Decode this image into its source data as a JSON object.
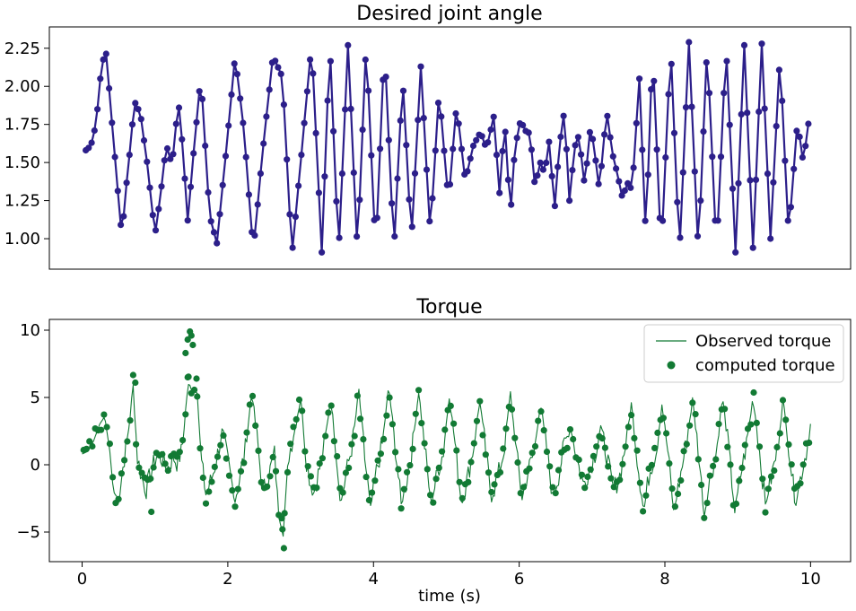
{
  "colors": {
    "angle_series": "#2c1f8a",
    "torque_series": "#127a34",
    "axis": "#000000",
    "background": "#ffffff",
    "legend_border": "#cccccc"
  },
  "chart_data": [
    {
      "type": "line",
      "title": "Desired joint angle",
      "xlabel": "",
      "ylabel": "",
      "xlim": [
        -0.45,
        10.55
      ],
      "ylim": [
        0.8,
        2.39
      ],
      "x_ticks_shown": false,
      "y_ticks": [
        "1.00",
        "1.25",
        "1.50",
        "1.75",
        "2.00",
        "2.25"
      ],
      "grid": false,
      "legend": null,
      "series": [
        {
          "style": "line-with-markers",
          "color": "#2c1f8a",
          "keyframes": {
            "x": [
              0.05,
              0.1,
              0.15,
              0.2,
              0.25,
              0.32,
              0.38,
              0.46,
              0.55,
              0.58,
              0.65,
              0.72,
              0.8,
              0.9,
              1.0,
              1.08,
              1.15,
              1.2,
              1.23,
              1.27,
              1.33,
              1.38,
              1.45,
              1.53,
              1.63,
              1.75,
              1.85,
              1.98,
              2.1,
              2.22,
              2.35,
              2.48,
              2.62,
              2.75,
              2.88,
              3.01,
              3.15,
              3.29,
              3.4,
              3.52,
              3.65,
              3.78,
              3.9,
              4.03,
              4.15,
              4.28,
              4.4,
              4.52,
              4.65,
              4.78,
              4.9,
              5.03,
              5.14,
              5.26,
              5.37,
              5.47,
              5.55,
              5.65,
              5.73,
              5.8,
              5.88,
              5.94,
              6.02,
              6.08,
              6.15,
              6.22,
              6.28,
              6.35,
              6.42,
              6.48,
              6.55,
              6.62,
              6.69,
              6.76,
              6.82,
              6.9,
              6.98,
              7.03,
              7.1,
              7.2,
              7.28,
              7.36,
              7.42,
              7.48,
              7.55,
              7.65,
              7.74,
              7.83,
              7.95,
              8.08,
              8.2,
              8.33,
              8.46,
              8.58,
              8.71,
              8.84,
              8.97,
              9.09,
              9.21,
              9.33,
              9.45,
              9.58,
              9.7,
              9.82,
              9.9,
              9.98
            ],
            "y": [
              1.58,
              1.6,
              1.65,
              1.8,
              2.05,
              2.27,
              1.93,
              1.48,
              0.98,
              1.23,
              1.55,
              1.9,
              1.82,
              1.47,
              1.02,
              1.3,
              1.6,
              1.58,
              1.41,
              1.7,
              1.86,
              1.6,
              1.12,
              1.56,
              2.07,
              1.15,
              0.97,
              1.59,
              2.2,
              1.72,
              0.92,
              1.58,
              2.2,
              2.06,
              0.89,
              1.55,
              2.28,
              0.91,
              2.28,
              0.9,
              2.27,
              0.91,
              2.29,
              0.91,
              2.27,
              0.92,
              2.06,
              0.99,
              2.13,
              1.03,
              1.97,
              1.24,
              1.88,
              1.38,
              1.61,
              1.7,
              1.59,
              1.8,
              1.3,
              1.78,
              1.15,
              1.59,
              1.78,
              1.71,
              1.69,
              1.32,
              1.51,
              1.43,
              1.67,
              1.15,
              1.6,
              1.84,
              1.25,
              1.6,
              1.68,
              1.34,
              1.75,
              1.59,
              1.32,
              1.84,
              1.56,
              1.4,
              1.26,
              1.37,
              1.32,
              2.05,
              1.0,
              2.26,
              0.91,
              2.26,
              0.9,
              2.29,
              0.91,
              2.27,
              0.91,
              2.27,
              0.91,
              2.27,
              0.94,
              2.28,
              1.0,
              2.2,
              1.02,
              1.77,
              1.5,
              1.79
            ]
          }
        }
      ]
    },
    {
      "type": "line",
      "title": "Torque",
      "xlabel": "time (s)",
      "ylabel": "",
      "xlim": [
        -0.45,
        10.55
      ],
      "ylim": [
        -7.2,
        10.8
      ],
      "x_ticks": [
        "0",
        "2",
        "4",
        "6",
        "8",
        "10"
      ],
      "y_ticks": [
        "−5",
        "0",
        "5",
        "10"
      ],
      "grid": false,
      "legend": {
        "placement": "top-right",
        "entries": [
          "Observed torque",
          "computed torque"
        ]
      },
      "series": [
        {
          "name": "Observed torque",
          "style": "thin-line",
          "color": "#127a34",
          "keyframes": {
            "x": [
              0.0,
              0.08,
              0.16,
              0.24,
              0.31,
              0.38,
              0.43,
              0.5,
              0.57,
              0.63,
              0.7,
              0.76,
              0.82,
              0.88,
              0.95,
              1.03,
              1.1,
              1.17,
              1.25,
              1.3,
              1.37,
              1.45,
              1.52,
              1.58,
              1.63,
              1.7,
              1.78,
              1.85,
              1.92,
              2.0,
              2.1,
              2.18,
              2.25,
              2.33,
              2.4,
              2.48,
              2.56,
              2.64,
              2.7,
              2.76,
              2.84,
              2.92,
              3.0,
              3.08,
              3.17,
              3.25,
              3.33,
              3.41,
              3.48,
              3.55,
              3.63,
              3.71,
              3.8,
              3.88,
              3.96,
              4.04,
              4.12,
              4.21,
              4.29,
              4.38,
              4.46,
              4.54,
              4.62,
              4.71,
              4.79,
              4.88,
              4.96,
              5.04,
              5.12,
              5.21,
              5.29,
              5.38,
              5.46,
              5.54,
              5.62,
              5.71,
              5.79,
              5.88,
              5.96,
              6.04,
              6.12,
              6.21,
              6.29,
              6.38,
              6.46,
              6.54,
              6.62,
              6.71,
              6.79,
              6.88,
              6.96,
              7.04,
              7.12,
              7.21,
              7.29,
              7.38,
              7.46,
              7.54,
              7.62,
              7.71,
              7.79,
              7.88,
              7.96,
              8.04,
              8.12,
              8.21,
              8.29,
              8.38,
              8.46,
              8.54,
              8.62,
              8.71,
              8.79,
              8.88,
              8.96,
              9.04,
              9.12,
              9.21,
              9.29,
              9.38,
              9.46,
              9.54,
              9.62,
              9.71,
              9.79,
              9.88,
              9.96,
              10.0
            ],
            "y": [
              0.8,
              1.0,
              1.8,
              3.0,
              3.6,
              1.0,
              -2.0,
              -2.6,
              0.2,
              2.2,
              5.8,
              0.5,
              -1.0,
              -1.8,
              -0.5,
              0.8,
              0.4,
              -0.3,
              0.6,
              0.2,
              1.0,
              5.8,
              5.8,
              5.6,
              0.5,
              -2.2,
              -1.0,
              0.5,
              2.5,
              0.3,
              -2.7,
              -0.5,
              1.5,
              5.5,
              2.0,
              -2.0,
              -0.8,
              0.8,
              -3.6,
              -5.0,
              0.8,
              2.6,
              5.0,
              0.3,
              -2.3,
              -0.5,
              1.5,
              5.0,
              1.5,
              -3.0,
              -0.5,
              1.5,
              5.5,
              0.5,
              -3.3,
              -0.5,
              1.5,
              5.8,
              1.8,
              -3.0,
              -1.0,
              1.6,
              5.5,
              1.0,
              -3.0,
              -0.5,
              1.0,
              5.2,
              1.5,
              -3.0,
              -1.0,
              1.5,
              4.8,
              1.0,
              -2.5,
              -0.8,
              1.0,
              5.3,
              1.0,
              -2.5,
              -0.5,
              1.0,
              4.7,
              1.0,
              -2.3,
              -0.8,
              1.5,
              2.8,
              0.5,
              -1.5,
              -0.4,
              0.8,
              2.8,
              0.5,
              -2.0,
              -0.8,
              1.5,
              4.5,
              0.5,
              -3.5,
              -0.5,
              1.0,
              4.5,
              1.0,
              -3.5,
              -1.0,
              1.5,
              4.8,
              1.0,
              -3.8,
              -1.0,
              1.0,
              5.0,
              1.0,
              -3.5,
              -0.8,
              1.5,
              5.0,
              1.5,
              -3.0,
              -1.0,
              1.0,
              4.8,
              1.0,
              -3.0,
              -0.5,
              1.5,
              3.0
            ]
          }
        },
        {
          "name": "computed torque",
          "style": "markers",
          "color": "#127a34",
          "outliers": {
            "x": [
              1.42,
              1.45,
              1.48,
              1.5,
              1.52,
              1.45,
              1.57,
              2.77,
              2.75,
              0.95,
              0.73
            ],
            "y": [
              8.3,
              9.3,
              9.9,
              9.6,
              8.9,
              6.5,
              6.4,
              -6.2,
              -4.8,
              -3.5,
              6.1
            ]
          }
        }
      ]
    }
  ]
}
